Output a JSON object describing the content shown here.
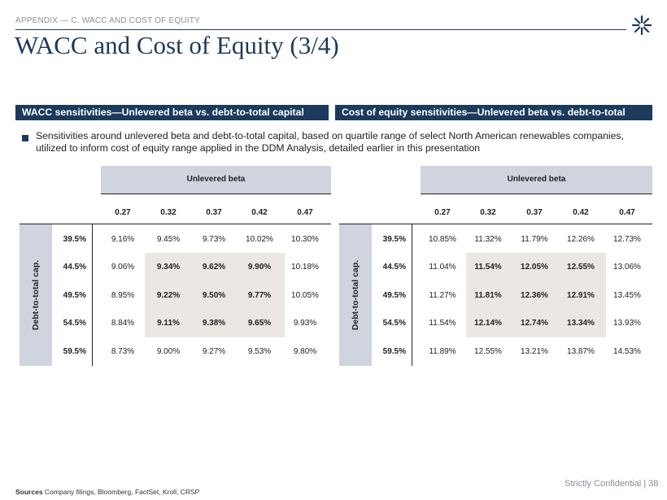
{
  "header": {
    "breadcrumb": "APPENDIX — C. WACC AND COST OF EQUITY",
    "title": "WACC and Cost of Equity (3/4)"
  },
  "sections": {
    "left_title": "WACC sensitivities—Unlevered beta vs. debt-to-total capital",
    "right_title": "Cost of equity sensitivities—Unlevered beta vs. debt-to-total capital"
  },
  "bullet": "Sensitivities around unlevered beta and debt-to-total capital, based on quartile range of select North American renewables companies, utilized to inform cost of equity range applied in the DDM Analysis, detailed earlier in this presentation",
  "wacc_table": {
    "col_group_label": "Unlevered beta",
    "row_group_label": "Debt-to-total cap.",
    "columns": [
      "0.27",
      "0.32",
      "0.37",
      "0.42",
      "0.47"
    ],
    "rows": [
      {
        "label": "39.5%",
        "values": [
          "9.16%",
          "9.45%",
          "9.73%",
          "10.02%",
          "10.30%"
        ]
      },
      {
        "label": "44.5%",
        "values": [
          "9.06%",
          "9.34%",
          "9.62%",
          "9.90%",
          "10.18%"
        ]
      },
      {
        "label": "49.5%",
        "values": [
          "8.95%",
          "9.22%",
          "9.50%",
          "9.77%",
          "10.05%"
        ]
      },
      {
        "label": "54.5%",
        "values": [
          "8.84%",
          "9.11%",
          "9.38%",
          "9.65%",
          "9.93%"
        ]
      },
      {
        "label": "59.5%",
        "values": [
          "8.73%",
          "9.00%",
          "9.27%",
          "9.53%",
          "9.80%"
        ]
      }
    ]
  },
  "coe_table": {
    "col_group_label": "Unlevered beta",
    "row_group_label": "Debt-to-total cap.",
    "columns": [
      "0.27",
      "0.32",
      "0.37",
      "0.42",
      "0.47"
    ],
    "rows": [
      {
        "label": "39.5%",
        "values": [
          "10.85%",
          "11.32%",
          "11.79%",
          "12.26%",
          "12.73%"
        ]
      },
      {
        "label": "44.5%",
        "values": [
          "11.04%",
          "11.54%",
          "12.05%",
          "12.55%",
          "13.06%"
        ]
      },
      {
        "label": "49.5%",
        "values": [
          "11.27%",
          "11.81%",
          "12.36%",
          "12.91%",
          "13.45%"
        ]
      },
      {
        "label": "54.5%",
        "values": [
          "11.54%",
          "12.14%",
          "12.74%",
          "13.34%",
          "13.93%"
        ]
      },
      {
        "label": "59.5%",
        "values": [
          "11.89%",
          "12.55%",
          "13.21%",
          "13.87%",
          "14.53%"
        ]
      }
    ]
  },
  "footer": {
    "sources_label": "Sources",
    "sources_text": "Company filings, Bloomberg, FactSet, Kroll, CRSP",
    "confidential": "Strictly Confidential | 38"
  },
  "colors": {
    "navy": "#1b3a5c",
    "header_band": "#cfd4de",
    "highlight": "#ebe7e2"
  }
}
